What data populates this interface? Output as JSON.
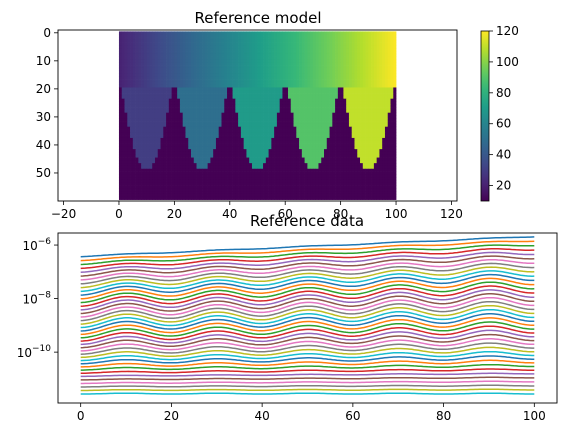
{
  "chart_data": [
    {
      "type": "heatmap",
      "title": "Reference model",
      "xlabel": "",
      "ylabel": "",
      "xlim": [
        -22,
        122
      ],
      "ylim": [
        60,
        -1
      ],
      "xticks": [
        "−20",
        "0",
        "20",
        "40",
        "60",
        "80",
        "100",
        "120"
      ],
      "xtick_values": [
        -20,
        0,
        20,
        40,
        60,
        80,
        100,
        120
      ],
      "yticks": [
        "0",
        "10",
        "20",
        "30",
        "40",
        "50"
      ],
      "ytick_values": [
        0,
        10,
        20,
        30,
        40,
        50
      ],
      "extent": {
        "x": [
          0,
          100
        ],
        "y": [
          -0.5,
          59.5
        ]
      },
      "model": {
        "background_value": 10,
        "top_layer": {
          "y_range": [
            0,
            20
          ],
          "value_from": 20,
          "value_to": 120,
          "direction": "x"
        },
        "lobes": [
          {
            "center_x": 10,
            "half_width": 9,
            "depth_y": 49,
            "value": 30
          },
          {
            "center_x": 30,
            "half_width": 9,
            "depth_y": 49,
            "value": 50
          },
          {
            "center_x": 50,
            "half_width": 9,
            "depth_y": 49,
            "value": 70
          },
          {
            "center_x": 70,
            "half_width": 9,
            "depth_y": 49,
            "value": 90
          },
          {
            "center_x": 90,
            "half_width": 9,
            "depth_y": 49,
            "value": 110
          }
        ]
      },
      "colorbar": {
        "colormap": "viridis",
        "vmin": 10,
        "vmax": 120,
        "ticks": [
          "20",
          "40",
          "60",
          "80",
          "100",
          "120"
        ],
        "tick_values": [
          20,
          40,
          60,
          80,
          100,
          120
        ]
      }
    },
    {
      "type": "line",
      "title": "Reference data",
      "xlabel": "",
      "ylabel": "",
      "yscale": "log",
      "xlim": [
        -5,
        105
      ],
      "ylim_exp": [
        -11.9,
        -5.55
      ],
      "xticks": [
        "0",
        "20",
        "40",
        "60",
        "80",
        "100"
      ],
      "xtick_values": [
        0,
        20,
        40,
        60,
        80,
        100
      ],
      "yticks": [
        {
          "base": "10",
          "exp": "−6",
          "value": -6
        },
        {
          "base": "10",
          "exp": "−8",
          "value": -8
        },
        {
          "base": "10",
          "exp": "−10",
          "value": -10
        }
      ],
      "grid": false,
      "legend": "none",
      "n_series": 40,
      "x": [
        0,
        100
      ],
      "top_series_log10": {
        "start": -6.42,
        "end": -5.68
      },
      "bottom_series_log10": {
        "start": -11.55,
        "end": -11.55
      },
      "oscillation_period": 20,
      "colors": [
        "#1f77b4",
        "#ff7f0e",
        "#2ca02c",
        "#d62728",
        "#9467bd",
        "#8c564b",
        "#e377c2",
        "#7f7f7f",
        "#bcbd22",
        "#17becf"
      ]
    }
  ]
}
